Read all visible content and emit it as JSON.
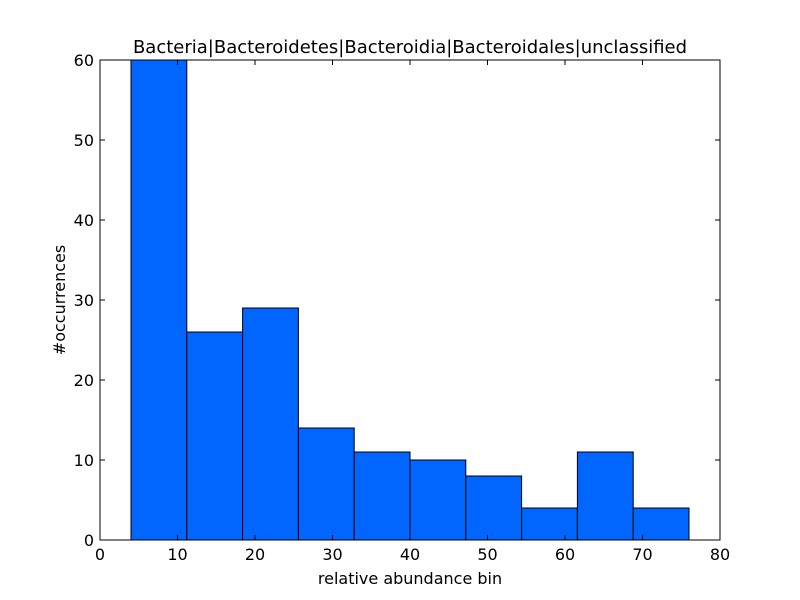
{
  "chart_data": {
    "type": "bar",
    "title": "Bacteria|Bacteroidetes|Bacteroidia|Bacteroidales|unclassified",
    "xlabel": "relative abundance bin",
    "ylabel": "#occurrences",
    "xlim": [
      0,
      80
    ],
    "ylim": [
      0,
      60
    ],
    "xticks": [
      0,
      10,
      20,
      30,
      40,
      50,
      60,
      70,
      80
    ],
    "yticks": [
      0,
      10,
      20,
      30,
      40,
      50,
      60
    ],
    "bins": [
      {
        "x0": 4.0,
        "x1": 11.2,
        "value": 60
      },
      {
        "x0": 11.2,
        "x1": 18.4,
        "value": 26
      },
      {
        "x0": 18.4,
        "x1": 25.6,
        "value": 29
      },
      {
        "x0": 25.6,
        "x1": 32.8,
        "value": 14
      },
      {
        "x0": 32.8,
        "x1": 40.0,
        "value": 11
      },
      {
        "x0": 40.0,
        "x1": 47.2,
        "value": 10
      },
      {
        "x0": 47.2,
        "x1": 54.4,
        "value": 8
      },
      {
        "x0": 54.4,
        "x1": 61.6,
        "value": 4
      },
      {
        "x0": 61.6,
        "x1": 68.8,
        "value": 11
      },
      {
        "x0": 68.8,
        "x1": 76.0,
        "value": 4
      }
    ],
    "bar_color": "#0066ff",
    "edge_color": "#000000",
    "grid": false,
    "legend": "none"
  }
}
